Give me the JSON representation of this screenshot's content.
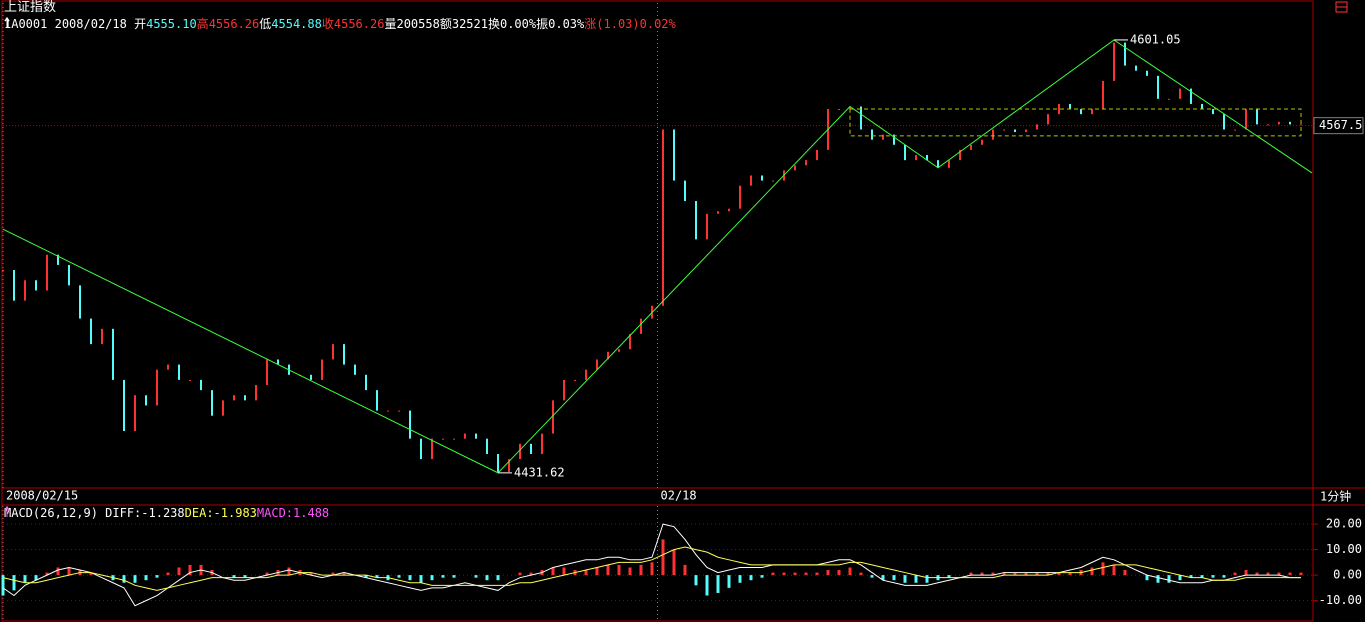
{
  "header": {
    "title": "上证指数",
    "code": "1A0001",
    "date": "2008/02/18",
    "items": [
      {
        "label": "开",
        "value": "4555.10",
        "label_color": "#ffffff",
        "color": "#54fcfc"
      },
      {
        "label": "高",
        "value": "4556.26",
        "label_color": "#ff3232",
        "color": "#ff3232"
      },
      {
        "label": "低",
        "value": "4554.88",
        "label_color": "#ffffff",
        "color": "#54fcfc"
      },
      {
        "label": "收",
        "value": "4556.26",
        "label_color": "#ff3232",
        "color": "#ff3232"
      },
      {
        "label": "量",
        "value": "200558",
        "label_color": "#ffffff",
        "color": "#ffffff"
      },
      {
        "label": "额",
        "value": "32521",
        "label_color": "#ffffff",
        "color": "#ffffff"
      },
      {
        "label": "换",
        "value": "0.00%",
        "label_color": "#ffffff",
        "color": "#ffffff"
      },
      {
        "label": "振",
        "value": "0.03%",
        "label_color": "#ffffff",
        "color": "#ffffff"
      },
      {
        "label": "涨",
        "value": "(1.03)0.02%",
        "label_color": "#ff3232",
        "color": "#ff3232"
      }
    ]
  },
  "chart_data": [
    {
      "type": "line",
      "period": "1分钟",
      "values": [
        4511,
        4499,
        4507,
        4503,
        4517,
        4513,
        4505,
        4492,
        4482,
        4488,
        4468,
        4448,
        4462,
        4458,
        4472,
        4474,
        4468,
        4468,
        4464,
        4454,
        4460,
        4462,
        4460,
        4466,
        4476,
        4474,
        4470,
        4470,
        4468,
        4476,
        4482,
        4474,
        4470,
        4464,
        4456,
        4456,
        4456,
        4445,
        4437,
        4445,
        4445,
        4445,
        4447,
        4445,
        4439,
        4432,
        4437,
        4443,
        4439,
        4447,
        4460,
        4468,
        4468,
        4472,
        4476,
        4479,
        4480,
        4486,
        4492,
        4497,
        4566,
        4546,
        4538,
        4523,
        4533,
        4534,
        4535,
        4544,
        4548,
        4546,
        4546,
        4550,
        4552,
        4554,
        4558,
        4574,
        4574,
        4575,
        4566,
        4562,
        4564,
        4560,
        4554,
        4556,
        4554,
        4551,
        4554,
        4558,
        4560,
        4562,
        4566,
        4566,
        4565,
        4566,
        4568,
        4572,
        4576,
        4574,
        4572,
        4574,
        4585,
        4600,
        4591,
        4589,
        4587,
        4578,
        4578,
        4582,
        4576,
        4574,
        4572,
        4566,
        4566,
        4574,
        4568,
        4568,
        4569,
        4568,
        4568
      ],
      "up_color": "#ff3232",
      "down_color": "#54fcfc",
      "ylim": [
        4425.7,
        4615.5
      ],
      "xticks": [
        {
          "value": 0,
          "label": "2008/02/15"
        },
        {
          "value": 59.5,
          "label": "02/18"
        }
      ],
      "last_price": 4567.5,
      "annotations": [
        {
          "x": 101,
          "value": 4601.05
        },
        {
          "x": 45,
          "value": 4431.62
        }
      ],
      "trend_line": {
        "x": [
          0,
          45,
          77,
          85,
          101,
          119
        ],
        "y": [
          4527,
          4431.62,
          4575,
          4551,
          4601.05,
          4549
        ],
        "color": "#3cff3c"
      },
      "box": {
        "x": [
          77,
          118
        ],
        "y": [
          4563.5,
          4574
        ],
        "color": "#b4c800"
      }
    },
    {
      "type": "macd",
      "title": "MACD(26,12,9)",
      "histogram": {
        "label": "MACD:1.488",
        "color": "#ff54ff",
        "values": [
          -8,
          -6,
          -3,
          -2,
          1,
          3,
          3,
          2,
          1,
          0,
          -2,
          -3,
          -3,
          -2,
          -1,
          1,
          3,
          4,
          4,
          2,
          0,
          -1,
          -1,
          0,
          1,
          2,
          3,
          2,
          1,
          0,
          1,
          1,
          0,
          -1,
          -1,
          -2,
          -1,
          -2,
          -3,
          -2,
          -1,
          -1,
          0,
          -1,
          -2,
          -2,
          0,
          1,
          1,
          2,
          3,
          3,
          2,
          2,
          3,
          4,
          4,
          3,
          4,
          5,
          14,
          10,
          4,
          -4,
          -8,
          -7,
          -5,
          -3,
          -2,
          -1,
          1,
          1,
          1,
          1,
          1,
          2,
          2,
          3,
          1,
          -1,
          -2,
          -2,
          -3,
          -3,
          -3,
          -2,
          -1,
          0,
          1,
          1,
          1,
          1,
          1,
          1,
          1,
          1,
          1,
          1,
          2,
          3,
          5,
          4,
          2,
          0,
          -2,
          -3,
          -3,
          -2,
          -1,
          -1,
          -1,
          -1,
          1,
          2,
          1,
          1,
          1,
          1,
          1
        ],
        "up_color": "#ff3232",
        "down_color": "#54fcfc"
      },
      "series": [
        {
          "label": "DIFF:-1.238",
          "color": "#ffffff",
          "values": [
            -5,
            -8,
            -4,
            -2,
            0,
            2,
            3,
            2,
            1,
            -1,
            -3,
            -5,
            -12,
            -10,
            -8,
            -5,
            -2,
            1,
            2,
            1,
            -1,
            -2,
            -2,
            -1,
            0,
            1,
            2,
            1,
            0,
            -1,
            0,
            1,
            0,
            -1,
            -2,
            -3,
            -4,
            -5,
            -6,
            -5,
            -5,
            -4,
            -3,
            -4,
            -5,
            -6,
            -3,
            -1,
            0,
            1,
            3,
            4,
            5,
            6,
            6,
            7,
            7,
            6,
            6,
            7,
            20,
            19,
            14,
            8,
            3,
            1,
            2,
            3,
            3,
            3,
            4,
            4,
            4,
            4,
            4,
            5,
            6,
            6,
            4,
            1,
            -2,
            -3,
            -4,
            -4,
            -4,
            -3,
            -2,
            -1,
            0,
            0,
            0,
            1,
            1,
            1,
            1,
            1,
            1,
            2,
            3,
            5,
            7,
            6,
            4,
            2,
            0,
            -1,
            -2,
            -3,
            -3,
            -3,
            -2,
            -2,
            -1,
            0,
            0,
            0,
            0,
            -1,
            -1
          ]
        },
        {
          "label": "DEA:-1.983",
          "color": "#ffff54",
          "values": [
            -1,
            -2,
            -3,
            -3,
            -2,
            -1,
            0,
            1,
            1,
            0,
            -1,
            -2,
            -4,
            -5,
            -6,
            -5,
            -4,
            -3,
            -2,
            -1,
            -1,
            -1,
            -1,
            -1,
            -1,
            0,
            0,
            1,
            1,
            0,
            0,
            0,
            0,
            0,
            -1,
            -1,
            -2,
            -3,
            -3,
            -4,
            -4,
            -4,
            -4,
            -4,
            -4,
            -4,
            -4,
            -3,
            -3,
            -2,
            -1,
            0,
            1,
            2,
            3,
            4,
            5,
            5,
            5,
            6,
            8,
            10,
            11,
            10,
            9,
            7,
            6,
            5,
            4,
            4,
            4,
            4,
            4,
            4,
            4,
            4,
            4,
            5,
            5,
            4,
            3,
            2,
            1,
            0,
            -1,
            -1,
            -1,
            -1,
            -1,
            -1,
            -1,
            0,
            0,
            0,
            0,
            0,
            1,
            1,
            1,
            2,
            3,
            4,
            4,
            4,
            3,
            2,
            1,
            0,
            -1,
            -1,
            -2,
            -2,
            -2,
            -1,
            -1,
            -1,
            -1,
            -1,
            -1
          ]
        }
      ],
      "ylim": [
        -17.6,
        27.1
      ],
      "yticks": [
        {
          "value": 20,
          "label": "20.00"
        },
        {
          "value": 10,
          "label": "10.00"
        },
        {
          "value": 0,
          "label": "0.00"
        },
        {
          "value": -10,
          "label": "-10.00"
        }
      ]
    }
  ]
}
